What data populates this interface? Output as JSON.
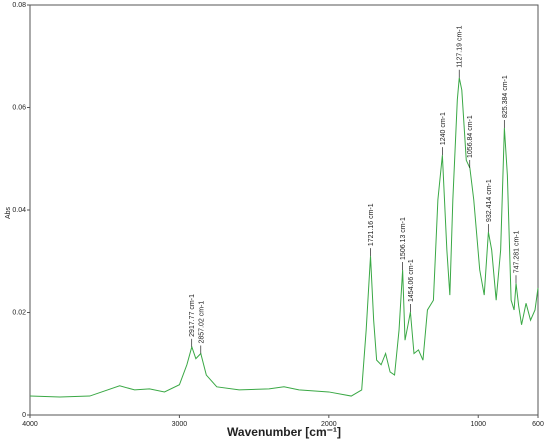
{
  "chart_data": {
    "type": "line",
    "xlabel": "Wavenumber [cm⁻¹]",
    "ylabel": "Abs",
    "xlim": [
      4000,
      600
    ],
    "ylim": [
      0,
      0.08
    ],
    "xticks": [
      4000,
      3000,
      2000,
      1000,
      600
    ],
    "yticks": [
      0,
      0.02,
      0.04,
      0.06,
      0.08
    ],
    "grid": false,
    "series": [
      {
        "color": "#3aa845",
        "x": [
          4000,
          3800,
          3600,
          3400,
          3300,
          3200,
          3100,
          3000,
          2950,
          2917,
          2890,
          2857,
          2820,
          2750,
          2600,
          2400,
          2300,
          2200,
          2000,
          1850,
          1780,
          1750,
          1721,
          1700,
          1680,
          1650,
          1620,
          1590,
          1560,
          1530,
          1506,
          1490,
          1470,
          1454,
          1430,
          1400,
          1370,
          1340,
          1300,
          1270,
          1240,
          1210,
          1190,
          1170,
          1140,
          1127,
          1110,
          1080,
          1056,
          1030,
          990,
          960,
          932,
          910,
          880,
          850,
          825,
          805,
          780,
          760,
          747,
          730,
          710,
          680,
          650,
          620,
          600
        ],
        "values": [
          0.0037,
          0.0035,
          0.0037,
          0.0057,
          0.0049,
          0.0051,
          0.0045,
          0.0059,
          0.0098,
          0.0133,
          0.011,
          0.012,
          0.0078,
          0.0055,
          0.0049,
          0.0051,
          0.0055,
          0.0049,
          0.0045,
          0.0037,
          0.0049,
          0.0166,
          0.031,
          0.0185,
          0.0107,
          0.0098,
          0.012,
          0.0084,
          0.0078,
          0.0166,
          0.0283,
          0.0146,
          0.0176,
          0.0201,
          0.012,
          0.0127,
          0.0107,
          0.0205,
          0.0224,
          0.042,
          0.0507,
          0.0322,
          0.0234,
          0.042,
          0.0615,
          0.0658,
          0.0634,
          0.0497,
          0.0482,
          0.042,
          0.0283,
          0.0234,
          0.0357,
          0.0322,
          0.0224,
          0.0322,
          0.056,
          0.0468,
          0.0224,
          0.0205,
          0.0257,
          0.0214,
          0.0176,
          0.0218,
          0.0185,
          0.0205,
          0.0248
        ]
      }
    ],
    "annotations": [
      {
        "x": 2917.77,
        "y": 0.0133,
        "label": "2917.77 cm-1"
      },
      {
        "x": 2857.02,
        "y": 0.012,
        "label": "2857.02 cm-1"
      },
      {
        "x": 1721.16,
        "y": 0.031,
        "label": "1721.16 cm-1"
      },
      {
        "x": 1506.13,
        "y": 0.0283,
        "label": "1506.13 cm-1"
      },
      {
        "x": 1454.06,
        "y": 0.0201,
        "label": "1454.06 cm-1"
      },
      {
        "x": 1240,
        "y": 0.0507,
        "label": "1240 cm-1"
      },
      {
        "x": 1127.19,
        "y": 0.0658,
        "label": "1127.19 cm-1"
      },
      {
        "x": 1056.84,
        "y": 0.0482,
        "label": "1056.84 cm-1"
      },
      {
        "x": 932.414,
        "y": 0.0357,
        "label": "932.414 cm-1"
      },
      {
        "x": 825.384,
        "y": 0.056,
        "label": "825.384 cm-1"
      },
      {
        "x": 747.281,
        "y": 0.0257,
        "label": "747.281 cm-1"
      }
    ]
  }
}
